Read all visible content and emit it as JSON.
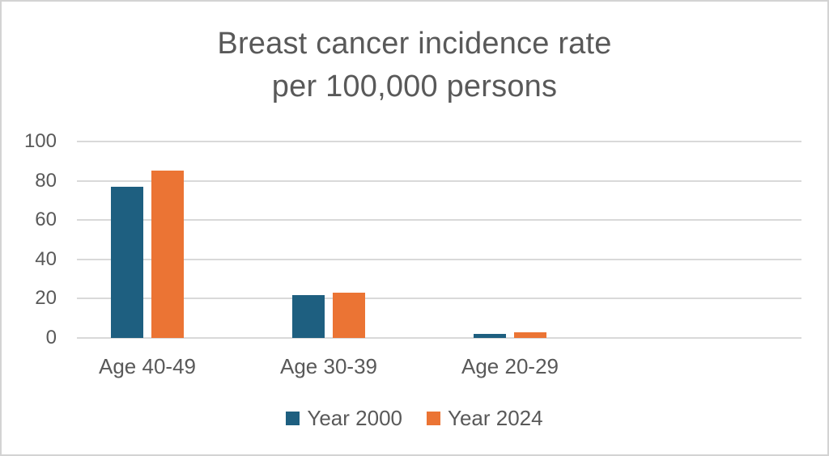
{
  "title": {
    "lines": [
      "Breast cancer incidence rate",
      "per 100,000 persons"
    ]
  },
  "chart_data": {
    "type": "bar",
    "title": "Breast cancer incidence rate per 100,000 persons",
    "categories": [
      "Age 40-49",
      "Age 30-39",
      "Age 20-29"
    ],
    "series": [
      {
        "name": "Year 2000",
        "color": "#1E5F80",
        "values": [
          77,
          22,
          2
        ]
      },
      {
        "name": "Year 2024",
        "color": "#EB7434",
        "values": [
          85,
          23,
          3
        ]
      }
    ],
    "xlabel": "",
    "ylabel": "",
    "ylim": [
      0,
      100
    ],
    "yticks": [
      0,
      20,
      40,
      60,
      80,
      100
    ],
    "grid": true,
    "legend_position": "bottom",
    "colors": {
      "text": "#595959",
      "gridline": "#d9d9d9",
      "frame_border": "#d3d3d3",
      "background": "#ffffff"
    }
  }
}
